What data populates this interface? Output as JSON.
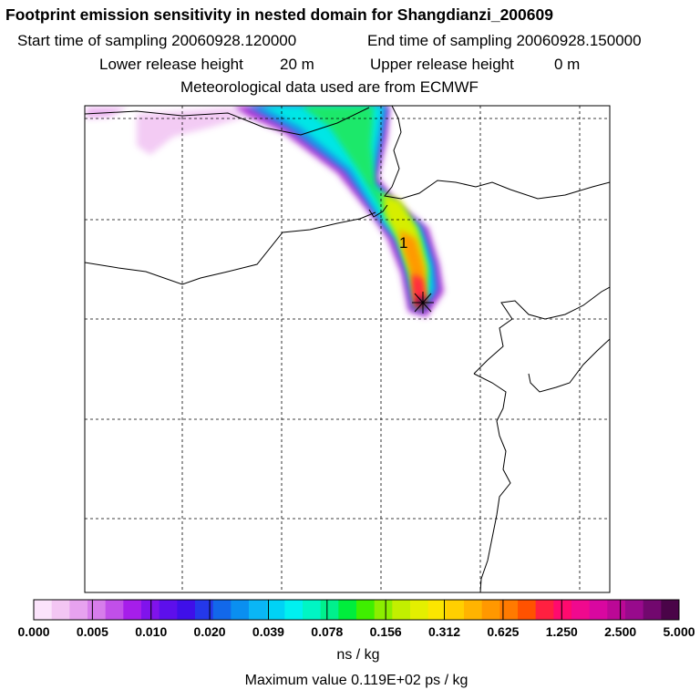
{
  "header": {
    "title": "Footprint emission sensitivity in nested domain for Shangdianzi_200609",
    "start_label": "Start time of sampling 20060928.120000",
    "end_label": "End time of sampling 20060928.150000",
    "lower_label": "Lower release height",
    "lower_value": "20 m",
    "upper_label": "Upper release height",
    "upper_value": "0 m",
    "met_label": "Meteorological data used are from ECMWF"
  },
  "map": {
    "marker_label": "1"
  },
  "colorbar": {
    "ticks": [
      "0.000",
      "0.005",
      "0.010",
      "0.020",
      "0.039",
      "0.078",
      "0.156",
      "0.312",
      "0.625",
      "1.250",
      "2.500",
      "5.000"
    ],
    "colors": [
      "#fbe3fb",
      "#f3c6f3",
      "#e7a2ef",
      "#d77deb",
      "#c14fe9",
      "#a61eea",
      "#8013ec",
      "#5d0fec",
      "#3f0fe9",
      "#2438ea",
      "#1268ea",
      "#0a8ff0",
      "#0ab6f5",
      "#00d2f5",
      "#00f0f0",
      "#00f5c4",
      "#00f08d",
      "#00ee3c",
      "#3fef00",
      "#8bee00",
      "#c2ef00",
      "#e4ef00",
      "#fbe600",
      "#ffcf00",
      "#ffb400",
      "#ff9800",
      "#ff7a00",
      "#ff5200",
      "#ff2040",
      "#ff0a6e",
      "#f0098e",
      "#d907a0",
      "#bb0896",
      "#980a8c",
      "#72086e",
      "#4a0448"
    ],
    "unit": "ns / kg",
    "max_label": "Maximum value  0.119E+02 ps / kg"
  }
}
